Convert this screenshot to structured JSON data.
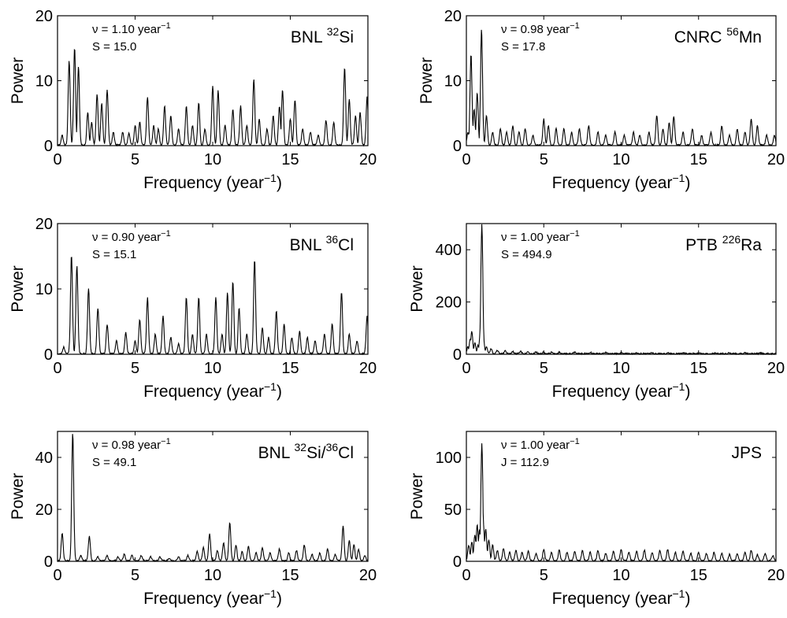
{
  "chart_data": [
    {
      "type": "line",
      "label": "BNL 32Si",
      "label_main": "BNL ",
      "label_sup": "32",
      "label_rest": "Si",
      "nu_text": "ν = 1.10 year",
      "nu_sup": "−1",
      "stat_text": "S = 15.0",
      "xlabel": "Frequency (year",
      "xlabel_sup": "−1",
      "xlabel_end": ")",
      "ylabel": "Power",
      "xlim": [
        0,
        20
      ],
      "ylim": [
        0,
        20
      ],
      "xticks": [
        0,
        5,
        10,
        15,
        20
      ],
      "yticks": [
        0,
        10,
        20
      ],
      "peaks": [
        [
          0.3,
          1.5
        ],
        [
          0.75,
          13.0
        ],
        [
          1.1,
          15.0
        ],
        [
          1.35,
          12.0
        ],
        [
          1.95,
          5.0
        ],
        [
          2.2,
          3.5
        ],
        [
          2.55,
          7.8
        ],
        [
          2.85,
          6.5
        ],
        [
          3.2,
          8.5
        ],
        [
          3.6,
          2.0
        ],
        [
          4.2,
          2.0
        ],
        [
          4.6,
          1.8
        ],
        [
          5.0,
          3.0
        ],
        [
          5.3,
          3.5
        ],
        [
          5.8,
          7.4
        ],
        [
          6.2,
          3.0
        ],
        [
          6.5,
          2.5
        ],
        [
          6.9,
          6.0
        ],
        [
          7.3,
          4.5
        ],
        [
          7.8,
          2.5
        ],
        [
          8.3,
          6.0
        ],
        [
          8.7,
          3.0
        ],
        [
          9.1,
          6.5
        ],
        [
          9.5,
          2.5
        ],
        [
          10.0,
          9.0
        ],
        [
          10.35,
          8.4
        ],
        [
          10.8,
          3.0
        ],
        [
          11.3,
          5.5
        ],
        [
          11.8,
          6.0
        ],
        [
          12.2,
          3.0
        ],
        [
          12.65,
          10.2
        ],
        [
          13.0,
          4.0
        ],
        [
          13.5,
          2.5
        ],
        [
          13.9,
          4.5
        ],
        [
          14.3,
          6.0
        ],
        [
          14.5,
          8.5
        ],
        [
          15.0,
          4.0
        ],
        [
          15.3,
          7.0
        ],
        [
          15.8,
          2.5
        ],
        [
          16.3,
          2.0
        ],
        [
          16.8,
          1.5
        ],
        [
          17.3,
          3.8
        ],
        [
          17.8,
          3.5
        ],
        [
          18.5,
          12.0
        ],
        [
          18.8,
          7.0
        ],
        [
          19.2,
          4.5
        ],
        [
          19.5,
          5.0
        ],
        [
          19.95,
          7.4
        ]
      ]
    },
    {
      "type": "line",
      "label": "CNRC 56Mn",
      "label_main": "CNRC ",
      "label_sup": "56",
      "label_rest": "Mn",
      "nu_text": "ν = 0.98 year",
      "nu_sup": "−1",
      "stat_text": "S = 17.8",
      "xlabel": "Frequency (year",
      "xlabel_sup": "−1",
      "xlabel_end": ")",
      "ylabel": "Power",
      "xlim": [
        0,
        20
      ],
      "ylim": [
        0,
        20
      ],
      "xticks": [
        0,
        5,
        10,
        15,
        20
      ],
      "yticks": [
        0,
        10,
        20
      ],
      "peaks": [
        [
          0.1,
          2.0
        ],
        [
          0.3,
          14.0
        ],
        [
          0.5,
          5.5
        ],
        [
          0.7,
          8.0
        ],
        [
          0.98,
          17.8
        ],
        [
          1.3,
          4.5
        ],
        [
          1.7,
          2.0
        ],
        [
          2.2,
          2.5
        ],
        [
          2.6,
          2.0
        ],
        [
          3.0,
          3.0
        ],
        [
          3.4,
          2.0
        ],
        [
          3.8,
          2.5
        ],
        [
          4.3,
          1.5
        ],
        [
          5.0,
          4.0
        ],
        [
          5.3,
          3.0
        ],
        [
          5.8,
          2.5
        ],
        [
          6.3,
          2.5
        ],
        [
          6.8,
          2.0
        ],
        [
          7.3,
          2.5
        ],
        [
          7.9,
          3.0
        ],
        [
          8.5,
          2.0
        ],
        [
          9.0,
          1.5
        ],
        [
          9.6,
          2.0
        ],
        [
          10.2,
          1.5
        ],
        [
          10.8,
          2.0
        ],
        [
          11.2,
          1.5
        ],
        [
          11.8,
          2.0
        ],
        [
          12.3,
          4.6
        ],
        [
          12.7,
          2.5
        ],
        [
          13.1,
          3.5
        ],
        [
          13.4,
          4.4
        ],
        [
          14.0,
          2.0
        ],
        [
          14.6,
          2.5
        ],
        [
          15.2,
          1.5
        ],
        [
          15.8,
          2.0
        ],
        [
          16.5,
          3.0
        ],
        [
          17.0,
          1.5
        ],
        [
          17.5,
          2.5
        ],
        [
          18.0,
          2.0
        ],
        [
          18.4,
          4.0
        ],
        [
          18.8,
          3.0
        ],
        [
          19.4,
          1.5
        ],
        [
          19.9,
          1.5
        ]
      ]
    },
    {
      "type": "line",
      "label": "BNL 36Cl",
      "label_main": "BNL ",
      "label_sup": "36",
      "label_rest": "Cl",
      "nu_text": "ν = 0.90 year",
      "nu_sup": "−1",
      "stat_text": "S = 15.1",
      "xlabel": "Frequency (year",
      "xlabel_sup": "−1",
      "xlabel_end": ")",
      "ylabel": "Power",
      "xlim": [
        0,
        20
      ],
      "ylim": [
        0,
        20
      ],
      "xticks": [
        0,
        5,
        10,
        15,
        20
      ],
      "yticks": [
        0,
        10,
        20
      ],
      "peaks": [
        [
          0.4,
          1.0
        ],
        [
          0.9,
          15.1
        ],
        [
          1.25,
          13.5
        ],
        [
          2.0,
          10.0
        ],
        [
          2.6,
          7.0
        ],
        [
          3.2,
          4.5
        ],
        [
          3.8,
          2.0
        ],
        [
          4.4,
          3.2
        ],
        [
          5.0,
          2.0
        ],
        [
          5.3,
          5.2
        ],
        [
          5.8,
          8.6
        ],
        [
          6.3,
          3.0
        ],
        [
          6.8,
          5.8
        ],
        [
          7.3,
          2.5
        ],
        [
          7.8,
          1.5
        ],
        [
          8.3,
          8.6
        ],
        [
          8.7,
          3.0
        ],
        [
          9.1,
          8.6
        ],
        [
          9.6,
          3.0
        ],
        [
          10.2,
          8.6
        ],
        [
          10.6,
          3.0
        ],
        [
          10.95,
          9.3
        ],
        [
          11.3,
          11.0
        ],
        [
          11.7,
          7.0
        ],
        [
          12.2,
          3.0
        ],
        [
          12.7,
          14.4
        ],
        [
          13.2,
          4.0
        ],
        [
          13.6,
          2.5
        ],
        [
          14.1,
          6.5
        ],
        [
          14.6,
          4.5
        ],
        [
          15.1,
          2.5
        ],
        [
          15.6,
          3.5
        ],
        [
          16.1,
          2.5
        ],
        [
          16.6,
          2.0
        ],
        [
          17.2,
          3.0
        ],
        [
          17.7,
          4.5
        ],
        [
          18.3,
          9.5
        ],
        [
          18.8,
          3.0
        ],
        [
          19.3,
          2.0
        ],
        [
          19.95,
          5.8
        ]
      ]
    },
    {
      "type": "line",
      "label": "PTB 226Ra",
      "label_main": "PTB ",
      "label_sup": "226",
      "label_rest": "Ra",
      "nu_text": "ν = 1.00 year",
      "nu_sup": "−1",
      "stat_text": "S = 494.9",
      "xlabel": "Frequency (year",
      "xlabel_sup": "−1",
      "xlabel_end": ")",
      "ylabel": "Power",
      "xlim": [
        0,
        20
      ],
      "ylim": [
        0,
        500
      ],
      "xticks": [
        0,
        5,
        10,
        15,
        20
      ],
      "yticks": [
        0,
        200,
        400
      ],
      "peaks": [
        [
          0.1,
          25.0
        ],
        [
          0.25,
          55.0
        ],
        [
          0.35,
          85.0
        ],
        [
          0.55,
          40.0
        ],
        [
          0.75,
          30.0
        ],
        [
          0.9,
          80.0
        ],
        [
          1.0,
          494.9
        ],
        [
          1.1,
          60.0
        ],
        [
          1.3,
          25.0
        ],
        [
          1.6,
          18.0
        ],
        [
          2.0,
          12.0
        ],
        [
          2.5,
          10.0
        ],
        [
          3.0,
          8.0
        ],
        [
          3.5,
          8.0
        ],
        [
          4.0,
          7.0
        ],
        [
          4.5,
          6.0
        ],
        [
          5.0,
          6.0
        ],
        [
          5.5,
          5.0
        ],
        [
          6.0,
          5.0
        ],
        [
          7.0,
          5.0
        ],
        [
          8.0,
          5.0
        ],
        [
          9.0,
          4.0
        ],
        [
          10.0,
          4.0
        ],
        [
          11.0,
          4.0
        ],
        [
          12.0,
          3.0
        ],
        [
          13.0,
          3.0
        ],
        [
          14.0,
          3.0
        ],
        [
          15.0,
          3.0
        ],
        [
          16.0,
          3.0
        ],
        [
          17.0,
          3.0
        ],
        [
          18.0,
          3.0
        ],
        [
          19.0,
          3.0
        ]
      ]
    },
    {
      "type": "line",
      "label": "BNL 32Si/36Cl",
      "label_main": "BNL ",
      "label_sup": "32",
      "label_rest": "Si/",
      "label_sup2": "36",
      "label_rest2": "Cl",
      "nu_text": "ν = 0.98 year",
      "nu_sup": "−1",
      "stat_text": "S = 49.1",
      "xlabel": "Frequency (year",
      "xlabel_sup": "−1",
      "xlabel_end": ")",
      "ylabel": "Power",
      "xlim": [
        0,
        20
      ],
      "ylim": [
        0,
        50
      ],
      "xticks": [
        0,
        5,
        10,
        15,
        20
      ],
      "yticks": [
        0,
        20,
        40
      ],
      "peaks": [
        [
          0.3,
          10.5
        ],
        [
          0.98,
          49.1
        ],
        [
          1.5,
          2.0
        ],
        [
          2.05,
          9.5
        ],
        [
          2.6,
          1.5
        ],
        [
          3.2,
          2.0
        ],
        [
          3.9,
          1.5
        ],
        [
          4.3,
          2.5
        ],
        [
          4.8,
          2.0
        ],
        [
          5.4,
          2.0
        ],
        [
          6.0,
          1.5
        ],
        [
          6.6,
          1.5
        ],
        [
          7.2,
          1.0
        ],
        [
          7.8,
          1.5
        ],
        [
          8.4,
          2.0
        ],
        [
          9.0,
          3.5
        ],
        [
          9.4,
          5.0
        ],
        [
          9.8,
          10.5
        ],
        [
          10.3,
          4.0
        ],
        [
          10.7,
          7.0
        ],
        [
          11.1,
          14.5
        ],
        [
          11.5,
          6.0
        ],
        [
          11.9,
          3.5
        ],
        [
          12.3,
          5.5
        ],
        [
          12.8,
          3.0
        ],
        [
          13.2,
          5.0
        ],
        [
          13.7,
          3.0
        ],
        [
          14.3,
          4.5
        ],
        [
          14.9,
          3.0
        ],
        [
          15.4,
          4.0
        ],
        [
          15.9,
          6.0
        ],
        [
          16.4,
          2.5
        ],
        [
          16.9,
          3.0
        ],
        [
          17.4,
          4.5
        ],
        [
          17.9,
          2.5
        ],
        [
          18.4,
          13.5
        ],
        [
          18.8,
          8.0
        ],
        [
          19.1,
          6.0
        ],
        [
          19.4,
          4.5
        ],
        [
          19.8,
          2.0
        ]
      ]
    },
    {
      "type": "line",
      "label": "JPS",
      "label_main": "JPS",
      "nu_text": "ν = 1.00 year",
      "nu_sup": "−1",
      "stat_text": "J = 112.9",
      "xlabel": "Frequency (year",
      "xlabel_sup": "−1",
      "xlabel_end": ")",
      "ylabel": "Power",
      "xlim": [
        0,
        20
      ],
      "ylim": [
        0,
        125
      ],
      "xticks": [
        0,
        5,
        10,
        15,
        20
      ],
      "yticks": [
        0,
        50,
        100
      ],
      "peaks": [
        [
          0.15,
          15.0
        ],
        [
          0.35,
          18.0
        ],
        [
          0.55,
          25.0
        ],
        [
          0.7,
          35.0
        ],
        [
          0.85,
          30.0
        ],
        [
          1.0,
          112.9
        ],
        [
          1.1,
          35.0
        ],
        [
          1.25,
          30.0
        ],
        [
          1.45,
          20.0
        ],
        [
          1.7,
          15.0
        ],
        [
          2.0,
          10.0
        ],
        [
          2.4,
          12.0
        ],
        [
          2.8,
          8.0
        ],
        [
          3.2,
          10.0
        ],
        [
          3.6,
          8.0
        ],
        [
          4.0,
          9.0
        ],
        [
          4.5,
          7.0
        ],
        [
          5.0,
          11.0
        ],
        [
          5.5,
          8.0
        ],
        [
          6.0,
          10.0
        ],
        [
          6.5,
          8.0
        ],
        [
          7.0,
          9.0
        ],
        [
          7.5,
          10.0
        ],
        [
          8.0,
          8.0
        ],
        [
          8.5,
          10.0
        ],
        [
          9.0,
          7.0
        ],
        [
          9.5,
          9.0
        ],
        [
          10.0,
          11.0
        ],
        [
          10.5,
          8.0
        ],
        [
          11.0,
          9.0
        ],
        [
          11.5,
          10.0
        ],
        [
          12.0,
          8.0
        ],
        [
          12.5,
          10.0
        ],
        [
          13.0,
          11.0
        ],
        [
          13.5,
          8.0
        ],
        [
          14.0,
          9.0
        ],
        [
          14.5,
          7.0
        ],
        [
          15.0,
          8.0
        ],
        [
          15.5,
          7.0
        ],
        [
          16.0,
          8.0
        ],
        [
          16.5,
          7.0
        ],
        [
          17.0,
          6.0
        ],
        [
          17.5,
          7.0
        ],
        [
          18.0,
          8.0
        ],
        [
          18.4,
          10.0
        ],
        [
          18.8,
          6.0
        ],
        [
          19.3,
          7.0
        ],
        [
          19.8,
          5.0
        ]
      ]
    }
  ]
}
